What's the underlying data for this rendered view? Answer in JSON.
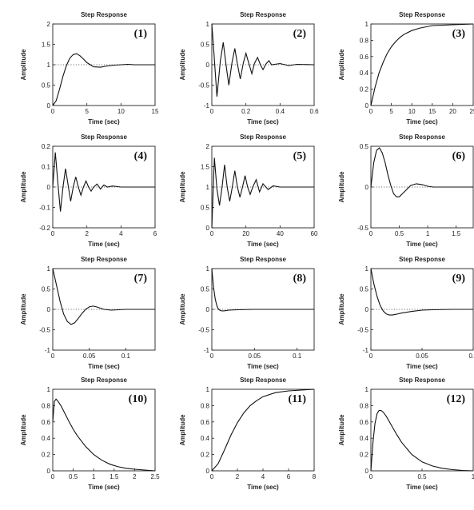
{
  "chart_data": [
    {
      "type": "line",
      "title": "Step Response",
      "panel_label": "(1)",
      "xlabel": "Time (sec)",
      "ylabel": "Amplitude",
      "xlim": [
        0,
        15
      ],
      "ylim": [
        0,
        2
      ],
      "xticks": [
        "0",
        "5",
        "10",
        "15"
      ],
      "yticks": [
        "0",
        "0.5",
        "1",
        "1.5",
        "2"
      ],
      "reference_line": 1,
      "series": [
        {
          "x": [
            0,
            0.5,
            1,
            1.5,
            2,
            2.5,
            3,
            3.5,
            4,
            4.5,
            5,
            6,
            7,
            8,
            9,
            10,
            11,
            12,
            13,
            14,
            15
          ],
          "y": [
            0,
            0.12,
            0.4,
            0.72,
            0.98,
            1.16,
            1.25,
            1.27,
            1.22,
            1.14,
            1.05,
            0.95,
            0.94,
            0.97,
            0.99,
            1.0,
            1.01,
            1.0,
            1.0,
            1.0,
            1.0
          ]
        }
      ]
    },
    {
      "type": "line",
      "title": "Step Response",
      "panel_label": "(2)",
      "xlabel": "Time (sec)",
      "ylabel": "Amplitude",
      "xlim": [
        0,
        0.6
      ],
      "ylim": [
        -1,
        1
      ],
      "xticks": [
        "0",
        "0.2",
        "0.4",
        "0.6"
      ],
      "yticks": [
        "-1",
        "-0.5",
        "0",
        "0.5",
        "1"
      ],
      "reference_line": 0,
      "series": [
        {
          "x": [
            0,
            0.012,
            0.03,
            0.05,
            0.067,
            0.085,
            0.1,
            0.118,
            0.135,
            0.15,
            0.167,
            0.185,
            0.2,
            0.218,
            0.235,
            0.25,
            0.268,
            0.285,
            0.3,
            0.318,
            0.335,
            0.35,
            0.4,
            0.45,
            0.5,
            0.6
          ],
          "y": [
            1,
            0.3,
            -0.78,
            0.1,
            0.55,
            -0.05,
            -0.5,
            0.05,
            0.4,
            0.02,
            -0.35,
            0.05,
            0.28,
            0.02,
            -0.22,
            0.03,
            0.18,
            0.0,
            -0.12,
            0.02,
            0.1,
            0.0,
            0.03,
            -0.02,
            0.01,
            0.0
          ]
        }
      ]
    },
    {
      "type": "line",
      "title": "Step Response",
      "panel_label": "(3)",
      "xlabel": "Time (sec)",
      "ylabel": "Amplitude",
      "xlim": [
        0,
        25
      ],
      "ylim": [
        0,
        1
      ],
      "xticks": [
        "0",
        "5",
        "10",
        "15",
        "20",
        "25"
      ],
      "yticks": [
        "0",
        "0.2",
        "0.4",
        "0.6",
        "0.8",
        "1"
      ],
      "series": [
        {
          "x": [
            0,
            1,
            2,
            3,
            4,
            5,
            6,
            7,
            8,
            10,
            12,
            15,
            20,
            25
          ],
          "y": [
            0,
            0.22,
            0.4,
            0.53,
            0.64,
            0.72,
            0.78,
            0.83,
            0.87,
            0.92,
            0.95,
            0.98,
            0.99,
            1.0
          ]
        }
      ]
    },
    {
      "type": "line",
      "title": "Step Response",
      "panel_label": "(4)",
      "xlabel": "Time (sec)",
      "ylabel": "Amplitude",
      "xlim": [
        0,
        6
      ],
      "ylim": [
        -0.2,
        0.2
      ],
      "xticks": [
        "0",
        "2",
        "4",
        "6"
      ],
      "yticks": [
        "-0.2",
        "-0.1",
        "0",
        "0.1",
        "0.2"
      ],
      "reference_line": 0,
      "series": [
        {
          "x": [
            0,
            0.15,
            0.3,
            0.45,
            0.6,
            0.75,
            0.9,
            1.05,
            1.2,
            1.35,
            1.5,
            1.65,
            1.8,
            1.95,
            2.1,
            2.25,
            2.4,
            2.6,
            2.8,
            3.0,
            3.2,
            3.5,
            4,
            5,
            6
          ],
          "y": [
            0,
            0.17,
            0.02,
            -0.12,
            0.0,
            0.09,
            0.01,
            -0.07,
            0.0,
            0.05,
            0.0,
            -0.04,
            0.0,
            0.03,
            0.0,
            -0.02,
            0.0,
            0.015,
            -0.01,
            0.01,
            0.0,
            0.005,
            0.0,
            0.0,
            0.0
          ]
        }
      ]
    },
    {
      "type": "line",
      "title": "Step Response",
      "panel_label": "(5)",
      "xlabel": "Time (sec)",
      "ylabel": "Amplitude",
      "xlim": [
        0,
        60
      ],
      "ylim": [
        0,
        2
      ],
      "xticks": [
        "0",
        "20",
        "40",
        "60"
      ],
      "yticks": [
        "0",
        "0.5",
        "1",
        "1.5",
        "2"
      ],
      "reference_line": 1,
      "series": [
        {
          "x": [
            0,
            1.5,
            3,
            4.5,
            6,
            7.5,
            9,
            10.5,
            12,
            13.5,
            15,
            16.5,
            18,
            19.5,
            21,
            22.5,
            24,
            26,
            28,
            30,
            33,
            36,
            40,
            50,
            60
          ],
          "y": [
            0,
            1.72,
            0.95,
            0.55,
            1.0,
            1.55,
            1.0,
            0.65,
            1.0,
            1.4,
            1.0,
            0.75,
            1.0,
            1.28,
            1.0,
            0.82,
            1.0,
            1.18,
            0.88,
            1.08,
            0.94,
            1.03,
            1.0,
            1.0,
            1.0
          ]
        }
      ]
    },
    {
      "type": "line",
      "title": "Step Response",
      "panel_label": "(6)",
      "xlabel": "Time (sec)",
      "ylabel": "Amplitude",
      "xlim": [
        0,
        1.8
      ],
      "ylim": [
        -0.5,
        0.5
      ],
      "xticks": [
        "0",
        "0.5",
        "1",
        "1.5"
      ],
      "yticks": [
        "-0.5",
        "0",
        "0.5"
      ],
      "reference_line": 0,
      "series": [
        {
          "x": [
            0,
            0.05,
            0.1,
            0.15,
            0.2,
            0.25,
            0.3,
            0.35,
            0.4,
            0.45,
            0.5,
            0.6,
            0.7,
            0.8,
            0.9,
            1.0,
            1.1,
            1.3,
            1.5,
            1.8
          ],
          "y": [
            0,
            0.3,
            0.45,
            0.48,
            0.42,
            0.3,
            0.15,
            0.02,
            -0.08,
            -0.12,
            -0.12,
            -0.05,
            0.02,
            0.04,
            0.03,
            0.01,
            0.0,
            0.0,
            0.0,
            0.0
          ]
        }
      ]
    },
    {
      "type": "line",
      "title": "Step Response",
      "panel_label": "(7)",
      "xlabel": "Time (sec)",
      "ylabel": "Amplitude",
      "xlim": [
        0,
        0.14
      ],
      "ylim": [
        -1,
        1
      ],
      "xticks": [
        "0",
        "0.05",
        "0.1"
      ],
      "yticks": [
        "-1",
        "-0.5",
        "0",
        "0.5",
        "1"
      ],
      "reference_line": 0,
      "series": [
        {
          "x": [
            0,
            0.005,
            0.01,
            0.015,
            0.02,
            0.025,
            0.03,
            0.035,
            0.04,
            0.045,
            0.05,
            0.055,
            0.06,
            0.065,
            0.07,
            0.08,
            0.09,
            0.1,
            0.12,
            0.14
          ],
          "y": [
            1,
            0.6,
            0.2,
            -0.12,
            -0.3,
            -0.37,
            -0.33,
            -0.22,
            -0.1,
            0.0,
            0.06,
            0.08,
            0.06,
            0.03,
            0.0,
            -0.02,
            -0.01,
            0.0,
            0.0,
            0.0
          ]
        }
      ]
    },
    {
      "type": "line",
      "title": "Step Response",
      "panel_label": "(8)",
      "xlabel": "Time (sec)",
      "ylabel": "Amplitude",
      "xlim": [
        0,
        0.12
      ],
      "ylim": [
        -1,
        1
      ],
      "xticks": [
        "0",
        "0.05",
        "0.1"
      ],
      "yticks": [
        "-1",
        "-0.5",
        "0",
        "0.5",
        "1"
      ],
      "reference_line": 0,
      "series": [
        {
          "x": [
            0,
            0.002,
            0.004,
            0.006,
            0.008,
            0.01,
            0.012,
            0.015,
            0.02,
            0.03,
            0.05,
            0.08,
            0.12
          ],
          "y": [
            1,
            0.55,
            0.25,
            0.08,
            0.0,
            -0.03,
            -0.04,
            -0.035,
            -0.02,
            -0.01,
            0.0,
            0.0,
            0.0
          ]
        }
      ]
    },
    {
      "type": "line",
      "title": "Step Response",
      "panel_label": "(9)",
      "xlabel": "Time (sec)",
      "ylabel": "Amplitude",
      "xlim": [
        0,
        0.1
      ],
      "ylim": [
        -1,
        1
      ],
      "xticks": [
        "0",
        "0.05",
        "0.1"
      ],
      "yticks": [
        "-1",
        "-0.5",
        "0",
        "0.5",
        "1"
      ],
      "reference_line": 0,
      "series": [
        {
          "x": [
            0,
            0.003,
            0.006,
            0.009,
            0.012,
            0.015,
            0.018,
            0.021,
            0.025,
            0.03,
            0.04,
            0.05,
            0.06,
            0.08,
            0.1
          ],
          "y": [
            1,
            0.62,
            0.32,
            0.1,
            -0.04,
            -0.11,
            -0.14,
            -0.14,
            -0.12,
            -0.09,
            -0.05,
            -0.02,
            -0.01,
            0.0,
            0.0
          ]
        }
      ]
    },
    {
      "type": "line",
      "title": "Step Response",
      "panel_label": "(10)",
      "xlabel": "Time (sec)",
      "ylabel": "Amplitude",
      "xlim": [
        0,
        2.5
      ],
      "ylim": [
        0,
        1
      ],
      "xticks": [
        "0",
        "0.5",
        "1",
        "1.5",
        "2",
        "2.5"
      ],
      "yticks": [
        "0",
        "0.2",
        "0.4",
        "0.6",
        "0.8",
        "1"
      ],
      "series": [
        {
          "x": [
            0,
            0.04,
            0.08,
            0.12,
            0.2,
            0.3,
            0.4,
            0.5,
            0.6,
            0.8,
            1.0,
            1.2,
            1.4,
            1.6,
            1.8,
            2.0,
            2.5
          ],
          "y": [
            0.6,
            0.85,
            0.88,
            0.86,
            0.8,
            0.7,
            0.6,
            0.51,
            0.43,
            0.3,
            0.2,
            0.13,
            0.08,
            0.05,
            0.03,
            0.02,
            0.0
          ]
        }
      ]
    },
    {
      "type": "line",
      "title": "Step Response",
      "panel_label": "(11)",
      "xlabel": "Time (sec)",
      "ylabel": "Amplitude",
      "xlim": [
        0,
        8
      ],
      "ylim": [
        0,
        1
      ],
      "xticks": [
        "0",
        "2",
        "4",
        "6",
        "8"
      ],
      "yticks": [
        "0",
        "0.2",
        "0.4",
        "0.6",
        "0.8",
        "1"
      ],
      "series": [
        {
          "x": [
            0,
            0.5,
            1,
            1.5,
            2,
            2.5,
            3,
            3.5,
            4,
            5,
            6,
            7,
            8
          ],
          "y": [
            0,
            0.09,
            0.26,
            0.44,
            0.59,
            0.71,
            0.8,
            0.86,
            0.91,
            0.96,
            0.98,
            0.99,
            1.0
          ]
        }
      ]
    },
    {
      "type": "line",
      "title": "Step Response",
      "panel_label": "(12)",
      "xlabel": "Time (sec)",
      "ylabel": "Amplitude",
      "xlim": [
        0,
        1
      ],
      "ylim": [
        0,
        1
      ],
      "xticks": [
        "0",
        "0.5",
        "1"
      ],
      "yticks": [
        "0",
        "0.2",
        "0.4",
        "0.6",
        "0.8",
        "1"
      ],
      "series": [
        {
          "x": [
            0,
            0.02,
            0.04,
            0.06,
            0.08,
            0.1,
            0.12,
            0.15,
            0.2,
            0.25,
            0.3,
            0.4,
            0.5,
            0.6,
            0.7,
            0.8,
            0.9,
            1.0
          ],
          "y": [
            0,
            0.35,
            0.58,
            0.7,
            0.74,
            0.74,
            0.72,
            0.67,
            0.56,
            0.45,
            0.35,
            0.2,
            0.11,
            0.06,
            0.03,
            0.015,
            0.005,
            0.0
          ]
        }
      ]
    }
  ]
}
